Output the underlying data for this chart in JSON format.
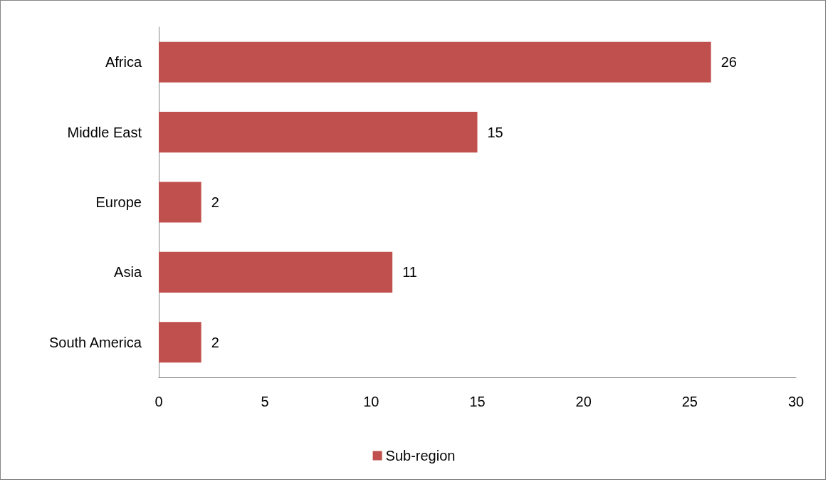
{
  "chart_data": {
    "type": "bar",
    "orientation": "horizontal",
    "categories": [
      "Africa",
      "Middle East",
      "Europe",
      "Asia",
      "South America"
    ],
    "series": [
      {
        "name": "Sub-region",
        "color": "#c0504d",
        "values": [
          26,
          15,
          2,
          11,
          2
        ]
      }
    ],
    "xlim": [
      0,
      30
    ],
    "xticks": [
      0,
      5,
      10,
      15,
      20,
      25,
      30
    ],
    "grid": false,
    "legend": "bottom",
    "data_labels": true
  }
}
